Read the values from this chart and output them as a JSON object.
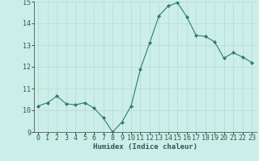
{
  "x": [
    0,
    1,
    2,
    3,
    4,
    5,
    6,
    7,
    8,
    9,
    10,
    11,
    12,
    13,
    14,
    15,
    16,
    17,
    18,
    19,
    20,
    21,
    22,
    23
  ],
  "y": [
    10.2,
    10.35,
    10.65,
    10.3,
    10.25,
    10.35,
    10.1,
    9.65,
    9.0,
    9.45,
    10.2,
    11.9,
    13.1,
    14.35,
    14.8,
    14.95,
    14.3,
    13.45,
    13.4,
    13.15,
    12.4,
    12.65,
    12.45,
    12.2
  ],
  "line_color": "#2d7d6e",
  "marker_color": "#2d7d6e",
  "bg_color": "#cceee8",
  "grid_color": "#b8ddd5",
  "xlabel": "Humidex (Indice chaleur)",
  "ylim": [
    9,
    15
  ],
  "xlim": [
    -0.5,
    23.5
  ],
  "yticks": [
    9,
    10,
    11,
    12,
    13,
    14,
    15
  ],
  "xticks": [
    0,
    1,
    2,
    3,
    4,
    5,
    6,
    7,
    8,
    9,
    10,
    11,
    12,
    13,
    14,
    15,
    16,
    17,
    18,
    19,
    20,
    21,
    22,
    23
  ],
  "label_fontsize": 6.5,
  "tick_fontsize": 6.0
}
